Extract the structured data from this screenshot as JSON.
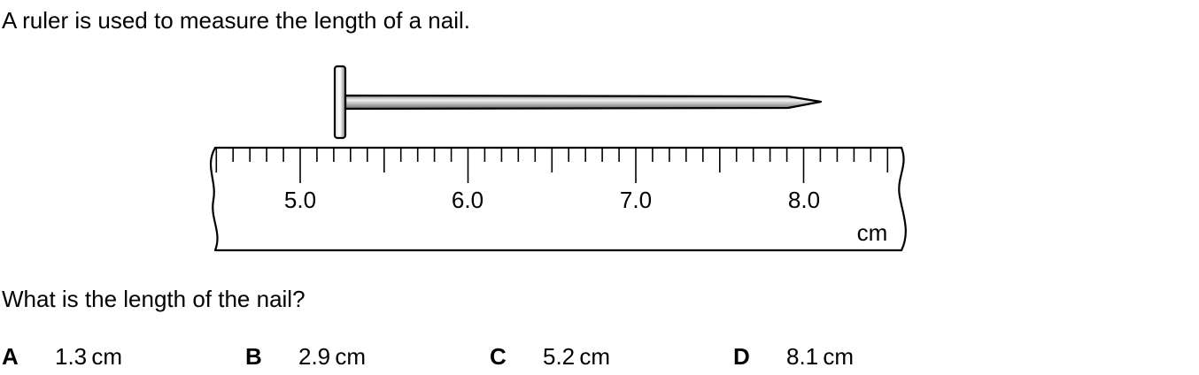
{
  "intro_text": "A ruler is used to measure the length of a nail.",
  "question_text": "What is the length of the nail?",
  "ruler": {
    "unit_label": "cm",
    "scale_labels": [
      "5.0",
      "6.0",
      "7.0",
      "8.0"
    ],
    "start_cm": 4.5,
    "end_cm": 8.5,
    "tick_step_cm": 0.1
  },
  "nail": {
    "head_position_cm": 5.2,
    "tip_position_cm": 8.1
  },
  "options": [
    {
      "letter": "A",
      "value": "1.3 cm"
    },
    {
      "letter": "B",
      "value": "2.9 cm"
    },
    {
      "letter": "C",
      "value": "5.2 cm"
    },
    {
      "letter": "D",
      "value": "8.1 cm"
    }
  ],
  "colors": {
    "ink": "#000000",
    "nail_light": "#f2f2f2",
    "nail_dark": "#6e6e6e"
  }
}
